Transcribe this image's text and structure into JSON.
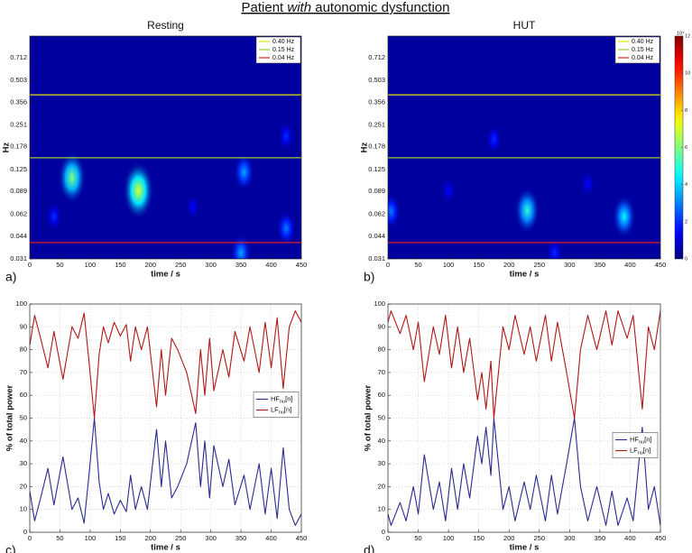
{
  "figure_title": {
    "prefix": "Patient ",
    "emphasis": "with",
    "suffix": " autonomic dysfunction"
  },
  "chart_data": [
    {
      "type": "heatmap",
      "title": "Resting",
      "panel_label": "a)",
      "xlabel": "time / s",
      "ylabel": "Hz",
      "xlim": [
        0,
        450
      ],
      "xticks": [
        0,
        50,
        100,
        150,
        200,
        250,
        300,
        350,
        400,
        450
      ],
      "ylim": [
        0.031,
        1.0
      ],
      "log_y": true,
      "yticks": [
        0.031,
        0.044,
        0.062,
        0.089,
        0.125,
        0.178,
        0.251,
        0.356,
        0.503,
        0.712
      ],
      "zlim": [
        0,
        12
      ],
      "legend": "upper right",
      "bands": [
        {
          "name": "0.40 Hz",
          "value": 0.4,
          "color": "#e6e600"
        },
        {
          "name": "0.15 Hz",
          "value": 0.15,
          "color": "#9acd32"
        },
        {
          "name": "0.04 Hz",
          "value": 0.04,
          "color": "#e02020"
        }
      ],
      "blobs": [
        {
          "time": 70,
          "freq": 0.11,
          "power": 6
        },
        {
          "time": 180,
          "freq": 0.09,
          "power": 7
        },
        {
          "time": 355,
          "freq": 0.12,
          "power": 3.5
        },
        {
          "time": 350,
          "freq": 0.034,
          "power": 3.5
        },
        {
          "time": 425,
          "freq": 0.05,
          "power": 3
        },
        {
          "time": 425,
          "freq": 0.21,
          "power": 2
        },
        {
          "time": 40,
          "freq": 0.06,
          "power": 2
        },
        {
          "time": 270,
          "freq": 0.07,
          "power": 1.5
        }
      ]
    },
    {
      "type": "heatmap",
      "title": "HUT",
      "panel_label": "b)",
      "xlabel": "time / s",
      "ylabel": "Hz",
      "xlim": [
        0,
        450
      ],
      "xticks": [
        0,
        50,
        100,
        150,
        200,
        250,
        300,
        350,
        400,
        450
      ],
      "ylim": [
        0.031,
        1.0
      ],
      "log_y": true,
      "yticks": [
        0.031,
        0.044,
        0.062,
        0.089,
        0.125,
        0.178,
        0.251,
        0.356,
        0.503,
        0.712
      ],
      "zlim": [
        0,
        12
      ],
      "zticks": [
        0,
        2,
        4,
        6,
        8,
        10,
        12
      ],
      "zlabel": "10⁴",
      "colorbar": true,
      "legend": "upper right",
      "bands": [
        {
          "name": "0.40 Hz",
          "value": 0.4,
          "color": "#e6e600"
        },
        {
          "name": "0.15 Hz",
          "value": 0.15,
          "color": "#9acd32"
        },
        {
          "name": "0.04 Hz",
          "value": 0.04,
          "color": "#e02020"
        }
      ],
      "blobs": [
        {
          "time": 230,
          "freq": 0.066,
          "power": 5
        },
        {
          "time": 390,
          "freq": 0.06,
          "power": 4.5
        },
        {
          "time": 175,
          "freq": 0.2,
          "power": 2
        },
        {
          "time": 5,
          "freq": 0.065,
          "power": 3
        },
        {
          "time": 275,
          "freq": 0.034,
          "power": 2
        },
        {
          "time": 330,
          "freq": 0.1,
          "power": 1.5
        },
        {
          "time": 100,
          "freq": 0.09,
          "power": 1.5
        }
      ]
    },
    {
      "type": "line",
      "panel_label": "c)",
      "xlabel": "time / s",
      "ylabel": "% of total power",
      "grid": true,
      "legend": "center right",
      "xlim": [
        0,
        450
      ],
      "xticks": [
        0,
        50,
        100,
        150,
        200,
        250,
        300,
        350,
        400,
        450
      ],
      "ylim": [
        0,
        100
      ],
      "yticks": [
        0,
        10,
        20,
        30,
        40,
        50,
        60,
        70,
        80,
        90,
        100
      ],
      "x": [
        0,
        8,
        18,
        30,
        40,
        55,
        70,
        80,
        90,
        98,
        107,
        115,
        122,
        130,
        140,
        150,
        160,
        167,
        175,
        185,
        195,
        210,
        218,
        225,
        235,
        245,
        260,
        275,
        283,
        290,
        298,
        305,
        320,
        330,
        340,
        355,
        365,
        380,
        390,
        400,
        410,
        420,
        430,
        440,
        450
      ],
      "series": [
        {
          "name": "HF",
          "subscript": "nu",
          "suffix": "[n]",
          "color": "#2b2b8f",
          "values": [
            18,
            5,
            15,
            28,
            12,
            33,
            10,
            15,
            4,
            25,
            50,
            22,
            10,
            17,
            8,
            14,
            9,
            25,
            10,
            20,
            10,
            45,
            20,
            40,
            15,
            20,
            30,
            48,
            20,
            40,
            15,
            38,
            20,
            32,
            12,
            25,
            10,
            30,
            8,
            28,
            6,
            37,
            10,
            3,
            8
          ]
        },
        {
          "name": "LF",
          "subscript": "nu",
          "suffix": "[n]",
          "color": "#b01818",
          "values": [
            82,
            95,
            85,
            72,
            88,
            67,
            90,
            85,
            96,
            75,
            50,
            78,
            90,
            83,
            92,
            86,
            91,
            75,
            90,
            80,
            90,
            55,
            80,
            60,
            85,
            80,
            70,
            52,
            80,
            60,
            85,
            62,
            80,
            68,
            88,
            75,
            90,
            70,
            92,
            72,
            94,
            63,
            90,
            97,
            92
          ]
        }
      ]
    },
    {
      "type": "line",
      "panel_label": "d)",
      "xlabel": "time / s",
      "ylabel": "% of total power",
      "grid": true,
      "legend": "center right",
      "xlim": [
        0,
        450
      ],
      "xticks": [
        0,
        50,
        100,
        150,
        200,
        250,
        300,
        350,
        400,
        450
      ],
      "ylim": [
        0,
        100
      ],
      "yticks": [
        0,
        10,
        20,
        30,
        40,
        50,
        60,
        70,
        80,
        90,
        100
      ],
      "x": [
        0,
        5,
        20,
        30,
        42,
        50,
        60,
        75,
        85,
        95,
        105,
        115,
        125,
        135,
        148,
        155,
        162,
        170,
        175,
        190,
        200,
        210,
        225,
        235,
        245,
        260,
        270,
        280,
        295,
        308,
        318,
        330,
        345,
        360,
        370,
        380,
        395,
        405,
        420,
        430,
        440,
        450
      ],
      "series": [
        {
          "name": "HF",
          "subscript": "nu",
          "suffix": "[n]",
          "color": "#2b2b8f",
          "values": [
            8,
            3,
            13,
            5,
            20,
            8,
            34,
            10,
            22,
            5,
            28,
            10,
            30,
            15,
            42,
            30,
            46,
            25,
            50,
            10,
            20,
            5,
            22,
            10,
            25,
            5,
            25,
            8,
            30,
            50,
            20,
            5,
            20,
            3,
            18,
            3,
            15,
            5,
            46,
            10,
            20,
            3
          ]
        },
        {
          "name": "LF",
          "subscript": "nu",
          "suffix": "[n]",
          "color": "#b01818",
          "values": [
            92,
            97,
            87,
            95,
            80,
            92,
            66,
            90,
            78,
            95,
            72,
            90,
            70,
            85,
            58,
            70,
            54,
            75,
            50,
            90,
            80,
            95,
            78,
            90,
            75,
            95,
            75,
            92,
            70,
            50,
            80,
            95,
            80,
            97,
            82,
            97,
            85,
            95,
            54,
            90,
            80,
            97
          ]
        }
      ]
    }
  ]
}
